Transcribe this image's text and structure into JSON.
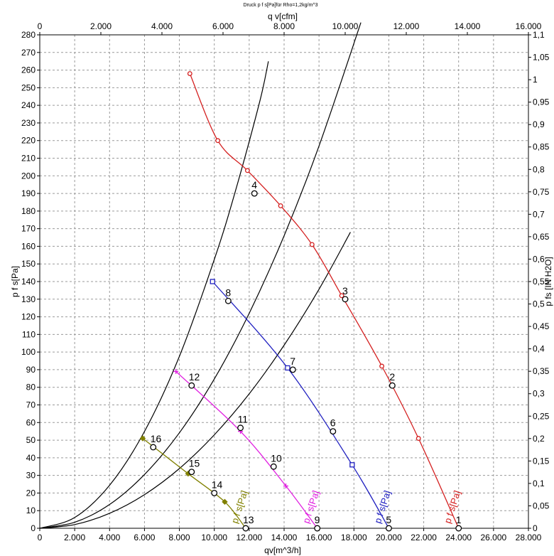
{
  "chart_data": {
    "type": "line",
    "title": "Druck p f s[Pa]für Rho=1,2kg/m^3",
    "xlabel": "qv[m^3/h]",
    "x2label": "q v[cfm]",
    "ylabel": "p f s[Pa]",
    "y2label": "p fs [IN H2O]",
    "xlim": [
      0,
      28000
    ],
    "x2lim": [
      0,
      16000
    ],
    "ylim": [
      0,
      280
    ],
    "y2lim": [
      0,
      1.1
    ],
    "grid": true,
    "x_ticks": [
      "0",
      "2.000",
      "4.000",
      "6.000",
      "8.000",
      "10.000",
      "12.000",
      "14.000",
      "16.000",
      "18.000",
      "20.000",
      "22.000",
      "24.000",
      "26.000",
      "28.000"
    ],
    "x2_ticks": [
      "0",
      "2.000",
      "4.000",
      "6.000",
      "8.000",
      "10.000",
      "12.000",
      "14.000",
      "16.000"
    ],
    "y_ticks": [
      "0",
      "10",
      "20",
      "30",
      "40",
      "50",
      "60",
      "70",
      "80",
      "90",
      "100",
      "110",
      "120",
      "130",
      "140",
      "150",
      "160",
      "170",
      "180",
      "190",
      "200",
      "210",
      "220",
      "230",
      "240",
      "250",
      "260",
      "270",
      "280"
    ],
    "y2_ticks": [
      "0",
      "0,05",
      "0,1",
      "0,15",
      "0,2",
      "0,25",
      "0,3",
      "0,35",
      "0,4",
      "0,45",
      "0,5",
      "0,55",
      "0,6",
      "0,65",
      "0,7",
      "0,75",
      "0,8",
      "0,85",
      "0,9",
      "0,95",
      "1",
      "1,05",
      "1,1"
    ],
    "series": [
      {
        "label": "p f s[Pa]",
        "color": "#d42020",
        "marker": "circle",
        "points": [
          [
            8600,
            258
          ],
          [
            10200,
            220
          ],
          [
            11900,
            203
          ],
          [
            13800,
            183
          ],
          [
            15600,
            161
          ],
          [
            17300,
            132
          ],
          [
            19600,
            92
          ],
          [
            21700,
            51
          ],
          [
            24000,
            0
          ]
        ]
      },
      {
        "label": "p f s[Pa]",
        "color": "#2020c0",
        "marker": "square",
        "points": [
          [
            9900,
            140
          ],
          [
            14200,
            91
          ],
          [
            17900,
            36
          ],
          [
            20000,
            0
          ]
        ]
      },
      {
        "label": "p f s[Pa]",
        "color": "#e020e0",
        "marker": "cross",
        "points": [
          [
            7800,
            89
          ],
          [
            11500,
            55
          ],
          [
            14100,
            24
          ],
          [
            15900,
            0
          ]
        ]
      },
      {
        "label": "p f s[Pa]",
        "color": "#808000",
        "marker": "diamond",
        "points": [
          [
            5900,
            51
          ],
          [
            8500,
            31
          ],
          [
            10600,
            15
          ],
          [
            11800,
            0
          ]
        ]
      }
    ],
    "system_curves": [
      {
        "color": "#000000",
        "points": [
          [
            0,
            0
          ],
          [
            2000,
            2.1
          ],
          [
            4000,
            8.5
          ],
          [
            6000,
            19.1
          ],
          [
            8000,
            33.9
          ],
          [
            10000,
            53
          ],
          [
            12000,
            76.3
          ],
          [
            14000,
            103.9
          ],
          [
            16000,
            135.6
          ],
          [
            17800,
            168
          ]
        ]
      },
      {
        "color": "#000000",
        "points": [
          [
            0,
            0
          ],
          [
            2000,
            3.4
          ],
          [
            4000,
            13.5
          ],
          [
            6000,
            30.5
          ],
          [
            8000,
            54.2
          ],
          [
            10000,
            84.7
          ],
          [
            12000,
            122
          ],
          [
            14000,
            166
          ],
          [
            16000,
            216.9
          ],
          [
            18400,
            287
          ]
        ]
      },
      {
        "color": "#000000",
        "points": [
          [
            0,
            0
          ],
          [
            2000,
            6.1
          ],
          [
            4000,
            24.4
          ],
          [
            6000,
            54.9
          ],
          [
            8000,
            97.6
          ],
          [
            10000,
            152.5
          ],
          [
            11200,
            191
          ],
          [
            12600,
            242
          ],
          [
            13100,
            265
          ]
        ]
      }
    ],
    "operating_points": [
      {
        "label": "1",
        "x": 24000,
        "y": 0
      },
      {
        "label": "2",
        "x": 20200,
        "y": 81
      },
      {
        "label": "3",
        "x": 17500,
        "y": 130
      },
      {
        "label": "4",
        "x": 12300,
        "y": 190
      },
      {
        "label": "5",
        "x": 20000,
        "y": 0
      },
      {
        "label": "6",
        "x": 16800,
        "y": 55
      },
      {
        "label": "7",
        "x": 14500,
        "y": 90
      },
      {
        "label": "8",
        "x": 10800,
        "y": 129
      },
      {
        "label": "9",
        "x": 15900,
        "y": 0
      },
      {
        "label": "10",
        "x": 13400,
        "y": 35
      },
      {
        "label": "11",
        "x": 11500,
        "y": 57
      },
      {
        "label": "12",
        "x": 8700,
        "y": 81
      },
      {
        "label": "13",
        "x": 11800,
        "y": 0
      },
      {
        "label": "14",
        "x": 10000,
        "y": 20
      },
      {
        "label": "15",
        "x": 8700,
        "y": 32
      },
      {
        "label": "16",
        "x": 6500,
        "y": 46
      }
    ]
  }
}
